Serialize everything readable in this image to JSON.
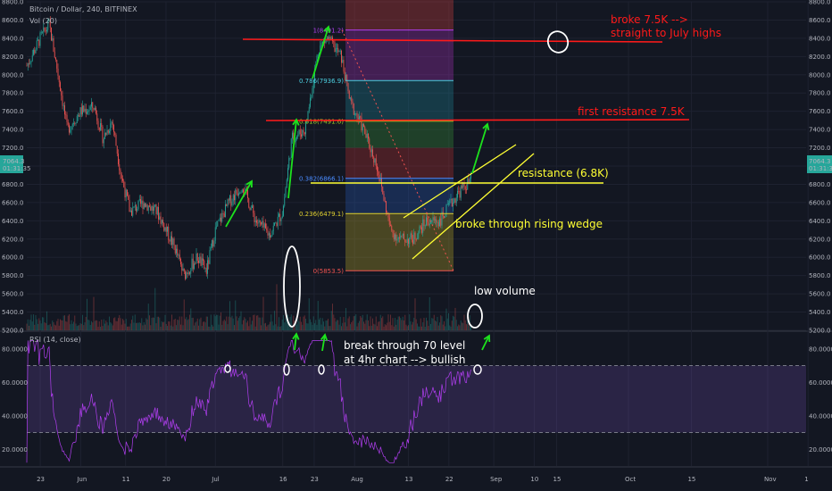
{
  "header": {
    "symbol": "Bitcoin / Dollar, 240, BITFINEX",
    "volume_label": "Vol (20)",
    "rsi_label": "RSI (14, close)"
  },
  "colors": {
    "background": "#131722",
    "up": "#26a69a",
    "down": "#ef5350",
    "rsi_line": "#b13ef0",
    "annotation_red": "#ff1a1a",
    "annotation_green": "#1de21d",
    "annotation_yellow": "#ffff33",
    "annotation_white": "#ffffff"
  },
  "chart_data": [
    {
      "type": "candlestick",
      "title": "Bitcoin / Dollar, 240, BITFINEX",
      "x_ticks": [
        "23",
        "Jun",
        "11",
        "20",
        "Jul",
        "16",
        "23",
        "Aug",
        "13",
        "22",
        "Sep",
        "10",
        "15",
        "Oct",
        "15",
        "Nov",
        "1"
      ],
      "y_ticks": [
        "8800.0",
        "8600.0",
        "8400.0",
        "8200.0",
        "8000.0",
        "7800.0",
        "7600.0",
        "7400.0",
        "7200.0",
        "7000.0",
        "6800.0",
        "6600.0",
        "6400.0",
        "6200.0",
        "6000.0",
        "5800.0",
        "5600.0",
        "5400.0",
        "5200.0"
      ],
      "ylim": [
        5200,
        8800
      ],
      "last_price": "7064.3",
      "countdown": "01:31:35",
      "price_path": [
        {
          "x": "May 20",
          "y": 8100
        },
        {
          "x": "May 23",
          "y": 8400
        },
        {
          "x": "May 25",
          "y": 8550
        },
        {
          "x": "May 27",
          "y": 8000
        },
        {
          "x": "May 29",
          "y": 7400
        },
        {
          "x": "Jun 1",
          "y": 7600
        },
        {
          "x": "Jun 4",
          "y": 7650
        },
        {
          "x": "Jun 6",
          "y": 7300
        },
        {
          "x": "Jun 8",
          "y": 7500
        },
        {
          "x": "Jun 10",
          "y": 6900
        },
        {
          "x": "Jun 12",
          "y": 6500
        },
        {
          "x": "Jun 15",
          "y": 6600
        },
        {
          "x": "Jun 18",
          "y": 6500
        },
        {
          "x": "Jun 22",
          "y": 6100
        },
        {
          "x": "Jun 24",
          "y": 5800
        },
        {
          "x": "Jun 27",
          "y": 6000
        },
        {
          "x": "Jun 29",
          "y": 5850
        },
        {
          "x": "Jul 1",
          "y": 6300
        },
        {
          "x": "Jul 4",
          "y": 6600
        },
        {
          "x": "Jul 7",
          "y": 6800
        },
        {
          "x": "Jul 10",
          "y": 6400
        },
        {
          "x": "Jul 13",
          "y": 6250
        },
        {
          "x": "Jul 16",
          "y": 6500
        },
        {
          "x": "Jul 18",
          "y": 7300
        },
        {
          "x": "Jul 21",
          "y": 7400
        },
        {
          "x": "Jul 24",
          "y": 8300
        },
        {
          "x": "Jul 26",
          "y": 8400
        },
        {
          "x": "Jul 29",
          "y": 8200
        },
        {
          "x": "Jul 31",
          "y": 7700
        },
        {
          "x": "Aug 3",
          "y": 7400
        },
        {
          "x": "Aug 6",
          "y": 7000
        },
        {
          "x": "Aug 9",
          "y": 6300
        },
        {
          "x": "Aug 11",
          "y": 6200
        },
        {
          "x": "Aug 14",
          "y": 6200
        },
        {
          "x": "Aug 17",
          "y": 6400
        },
        {
          "x": "Aug 20",
          "y": 6400
        },
        {
          "x": "Aug 24",
          "y": 6700
        },
        {
          "x": "Aug 26",
          "y": 6800
        },
        {
          "x": "Aug 27",
          "y": 6850
        }
      ],
      "fibonacci": [
        {
          "label": "1(8491.2)",
          "value": 8491.2
        },
        {
          "label": "0.786(7936.9)",
          "value": 7936.9
        },
        {
          "label": "0.618(7491.6)",
          "value": 7491.6
        },
        {
          "label": "0.382(6866.1)",
          "value": 6866.1
        },
        {
          "label": "0.236(6479.1)",
          "value": 6479.1
        },
        {
          "label": "0(5853.5)",
          "value": 5853.5
        }
      ],
      "annotations": [
        {
          "kind": "text",
          "text": "broke 7.5K -->",
          "color": "red"
        },
        {
          "kind": "text",
          "text": "straight to July highs",
          "color": "red"
        },
        {
          "kind": "text",
          "text": "first resistance 7.5K",
          "color": "red"
        },
        {
          "kind": "text",
          "text": "resistance (6.8K)",
          "color": "yellow"
        },
        {
          "kind": "text",
          "text": "broke through rising wedge",
          "color": "yellow"
        },
        {
          "kind": "text",
          "text": "low volume",
          "color": "white"
        }
      ]
    },
    {
      "type": "line",
      "title": "RSI (14, close)",
      "y_ticks": [
        "80.0000",
        "60.0000",
        "40.0000",
        "20.0000"
      ],
      "ylim": [
        10,
        90
      ],
      "bands": [
        30,
        70
      ],
      "annotations": [
        {
          "kind": "text",
          "text": "break through 70 level"
        },
        {
          "kind": "text",
          "text": "at 4hr chart --> bullish"
        }
      ]
    }
  ]
}
